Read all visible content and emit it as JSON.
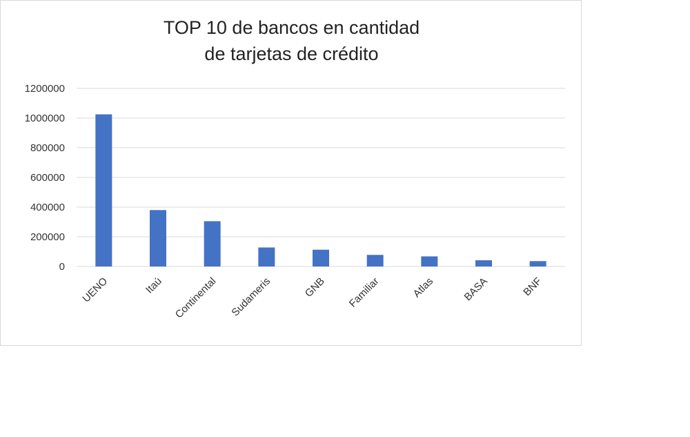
{
  "chart_data": {
    "type": "bar",
    "title": [
      "TOP 10 de bancos en cantidad",
      "de tarjetas de crédito"
    ],
    "categories": [
      "UENO",
      "Itaú",
      "Continental",
      "Sudameris",
      "GNB",
      "Familiar",
      "Atlas",
      "BASA",
      "BNF"
    ],
    "values": [
      1025000,
      380000,
      305000,
      128000,
      113000,
      78000,
      68000,
      42000,
      36000
    ],
    "ylim": [
      0,
      1200000
    ],
    "yticks": [
      "0",
      "200000",
      "400000",
      "600000",
      "800000",
      "1000000",
      "1200000"
    ],
    "grid": true,
    "legend": "none",
    "bar_color": "#4472c4",
    "grid_color": "#d9d9d9"
  }
}
